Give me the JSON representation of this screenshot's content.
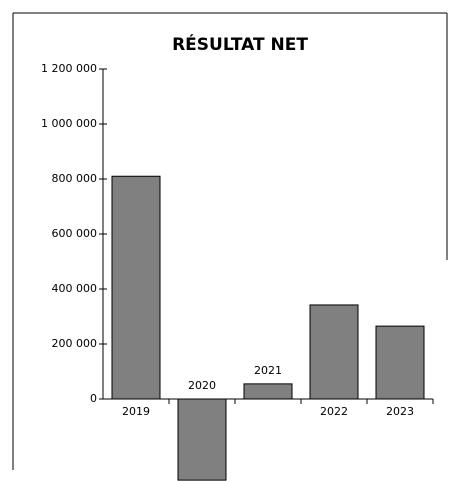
{
  "chart_data": {
    "type": "bar",
    "title": "RÉSULTAT NET",
    "categories": [
      "2019",
      "2020",
      "2021",
      "2022",
      "2023"
    ],
    "values": [
      810000,
      -295000,
      55000,
      342000,
      265000
    ],
    "color": "#808080",
    "ylim": [
      -300000,
      1200000
    ],
    "yticks": [
      0,
      {
        "value": 200000,
        "label": "200 000"
      },
      {
        "value": 400000,
        "label": "400 000"
      },
      {
        "value": 600000,
        "label": "600 000"
      },
      {
        "value": 800000,
        "label": "800 000"
      },
      {
        "value": 1000000,
        "label": "1 000 000"
      },
      {
        "value": 1200000,
        "label": "1 200 000"
      }
    ],
    "grid": false
  }
}
